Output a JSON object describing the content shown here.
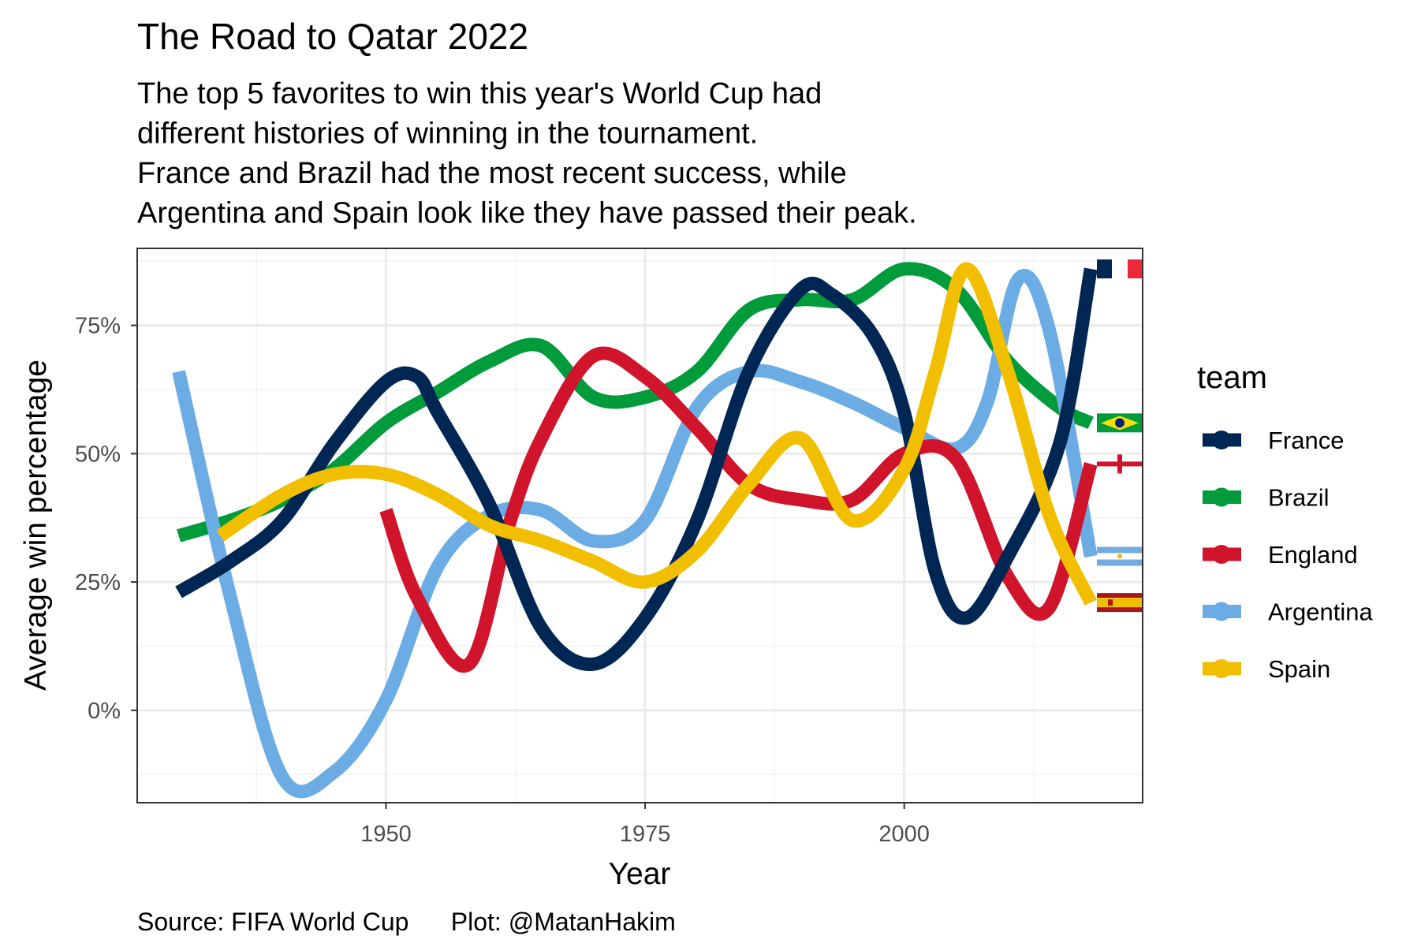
{
  "chart_data": {
    "type": "line",
    "title": "The Road to Qatar 2022",
    "subtitle": [
      "The top 5 favorites to win this year's World Cup had",
      "different histories of winning in the tournament.",
      "France and Brazil had the most recent success, while",
      "Argentina and Spain look like they have passed their peak."
    ],
    "xlabel": "Year",
    "ylabel": "Average win percentage",
    "caption": "Source: FIFA World Cup      Plot: @MatanHakim",
    "xlim": [
      1926,
      2023
    ],
    "ylim": [
      -18,
      90
    ],
    "xticks": [
      {
        "value": 1950,
        "label": "1950"
      },
      {
        "value": 1975,
        "label": "1975"
      },
      {
        "value": 2000,
        "label": "2000"
      }
    ],
    "yticks": [
      {
        "value": 0,
        "label": "0%"
      },
      {
        "value": 25,
        "label": "25%"
      },
      {
        "value": 50,
        "label": "50%"
      },
      {
        "value": 75,
        "label": "75%"
      }
    ],
    "grid": true,
    "legend": {
      "title": "team",
      "position": "right"
    },
    "series": [
      {
        "name": "France",
        "color": "#002654",
        "x": [
          1930,
          1935,
          1940,
          1945,
          1950,
          1953,
          1955,
          1960,
          1965,
          1970,
          1975,
          1980,
          1985,
          1990,
          1993,
          1997,
          2000,
          2003,
          2006,
          2010,
          2015,
          2018
        ],
        "y": [
          23,
          29,
          37,
          52,
          64,
          65,
          58,
          40,
          16,
          9,
          18,
          37,
          66,
          82,
          81,
          73,
          58,
          27,
          18,
          30,
          52,
          86
        ]
      },
      {
        "name": "Brazil",
        "color": "#009B3A",
        "x": [
          1930,
          1935,
          1940,
          1945,
          1950,
          1955,
          1960,
          1965,
          1970,
          1975,
          1980,
          1985,
          1990,
          1995,
          2000,
          2005,
          2010,
          2015,
          2018
        ],
        "y": [
          34,
          37,
          41,
          47,
          56,
          62,
          68,
          71,
          61,
          61,
          66,
          78,
          80,
          80,
          86,
          82,
          68,
          59,
          56
        ]
      },
      {
        "name": "England",
        "color": "#CF142B",
        "x": [
          1950,
          1953,
          1958,
          1962,
          1965,
          1970,
          1975,
          1980,
          1985,
          1990,
          1995,
          2000,
          2005,
          2010,
          2014,
          2018
        ],
        "y": [
          39,
          22,
          9,
          37,
          53,
          69,
          65,
          55,
          44,
          41,
          41,
          50,
          49,
          26,
          20,
          48
        ]
      },
      {
        "name": "Argentina",
        "color": "#6CACE4",
        "x": [
          1930,
          1935,
          1940,
          1945,
          1950,
          1955,
          1960,
          1965,
          1970,
          1975,
          1980,
          1985,
          1990,
          1995,
          2000,
          2005,
          2008,
          2011,
          2014,
          2018
        ],
        "y": [
          66,
          22,
          -13,
          -12,
          2,
          28,
          38,
          39,
          33,
          37,
          59,
          66,
          64,
          60,
          55,
          51,
          60,
          84,
          74,
          30
        ]
      },
      {
        "name": "Spain",
        "color": "#F1BF00",
        "x": [
          1934,
          1940,
          1945,
          1950,
          1955,
          1960,
          1965,
          1970,
          1975,
          1980,
          1985,
          1990,
          1995,
          2000,
          2003,
          2006,
          2010,
          2014,
          2018
        ],
        "y": [
          34,
          42,
          46,
          46,
          42,
          36,
          33,
          29,
          25,
          31,
          44,
          53,
          37,
          47,
          66,
          86,
          66,
          38,
          21
        ]
      }
    ]
  }
}
